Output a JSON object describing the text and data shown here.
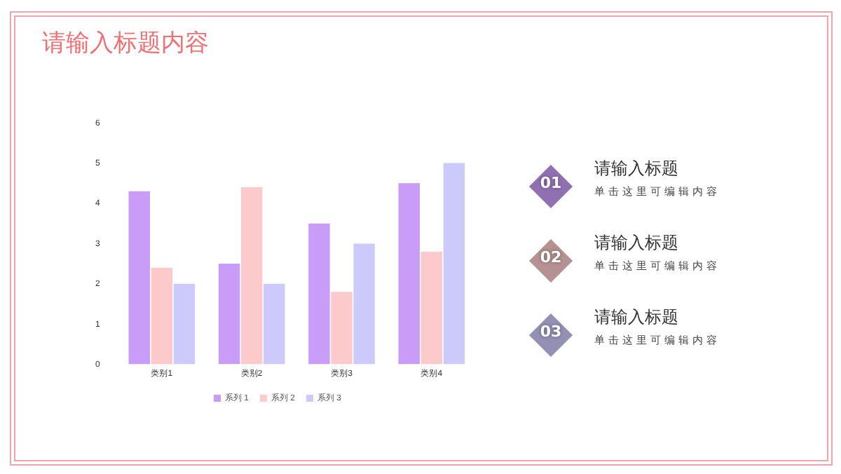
{
  "chart_data": {
    "type": "bar",
    "title": "请输入标题内容",
    "categories": [
      "类别1",
      "类别2",
      "类别3",
      "类别4"
    ],
    "series": [
      {
        "name": "系列 1",
        "color": "#c99cf7",
        "values": [
          4.3,
          2.5,
          3.5,
          4.5
        ]
      },
      {
        "name": "系列 2",
        "color": "#fccaca",
        "values": [
          2.4,
          4.4,
          1.8,
          2.8
        ]
      },
      {
        "name": "系列 3",
        "color": "#cbcafa",
        "values": [
          2,
          2,
          3,
          5
        ]
      }
    ],
    "ylim": [
      0,
      6
    ],
    "yticks": [
      0,
      1,
      2,
      3,
      4,
      5,
      6
    ],
    "grid": false,
    "legend": "bottom",
    "annotations": [
      "01",
      "请输入标题",
      "单击这里可编辑内容",
      "02",
      "请输入标题",
      "单击这里可编辑内容",
      "03",
      "请输入标题",
      "单击这里可编辑内容"
    ]
  }
}
